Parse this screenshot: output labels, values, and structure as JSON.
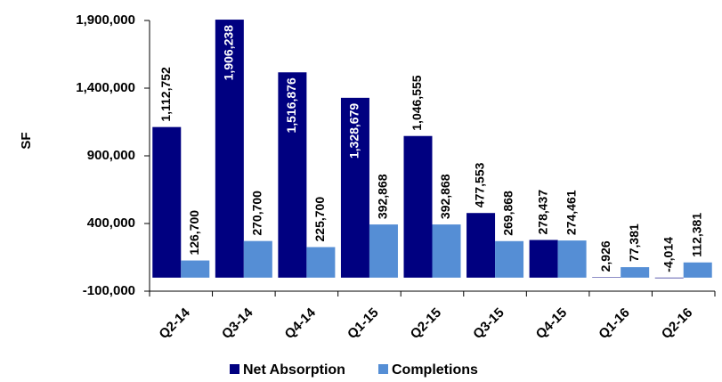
{
  "chart_data": {
    "type": "bar",
    "y_label": "SF",
    "categories": [
      "Q2-14",
      "Q3-14",
      "Q4-14",
      "Q1-15",
      "Q2-15",
      "Q3-15",
      "Q4-15",
      "Q1-16",
      "Q2-16"
    ],
    "series": [
      {
        "name": "Net Absorption",
        "color": "#000080",
        "values": [
          1112752,
          1906238,
          1516876,
          1328679,
          1046555,
          477553,
          278437,
          2926,
          -4014
        ],
        "value_labels": [
          "1,112,752",
          "1,906,238",
          "1,516,876",
          "1,328,679",
          "1,046,555",
          "477,553",
          "278,437",
          "2,926",
          "-4,014"
        ]
      },
      {
        "name": "Completions",
        "color": "#558ed5",
        "values": [
          126700,
          270700,
          225700,
          392868,
          392868,
          269868,
          274461,
          77381,
          112381
        ],
        "value_labels": [
          "126,700",
          "270,700",
          "225,700",
          "392,868",
          "392,868",
          "269,868",
          "274,461",
          "77,381",
          "112,381"
        ]
      }
    ],
    "ylim": [
      -100000,
      1900000
    ],
    "yticks": [
      {
        "value": -100000,
        "label": "-100,000"
      },
      {
        "value": 400000,
        "label": "400,000"
      },
      {
        "value": 900000,
        "label": "900,000"
      },
      {
        "value": 1400000,
        "label": "1,400,000"
      },
      {
        "value": 1900000,
        "label": "1,900,000"
      }
    ],
    "legend": "bottom"
  }
}
